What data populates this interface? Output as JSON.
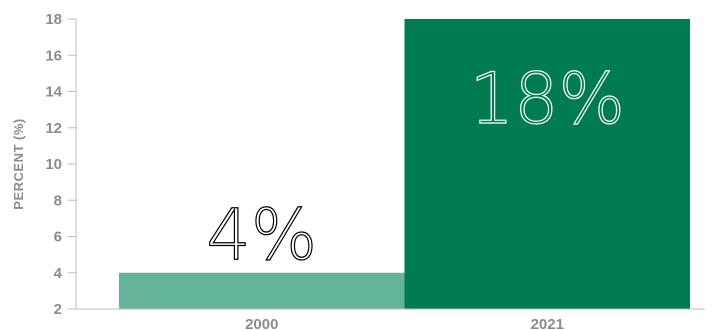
{
  "chart_data": {
    "type": "bar",
    "title": "",
    "xlabel": "",
    "ylabel": "PERCENT (%)",
    "ylim": [
      2,
      18
    ],
    "yticks": [
      2,
      4,
      6,
      8,
      10,
      12,
      14,
      16,
      18
    ],
    "grid": false,
    "categories": [
      "2000",
      "2021"
    ],
    "values": [
      4,
      18
    ],
    "data_labels": [
      "4%",
      "18%"
    ],
    "colors": [
      "#65b39b",
      "#007b52"
    ],
    "data_label_colors": [
      "#000000",
      "#ffffff"
    ]
  }
}
